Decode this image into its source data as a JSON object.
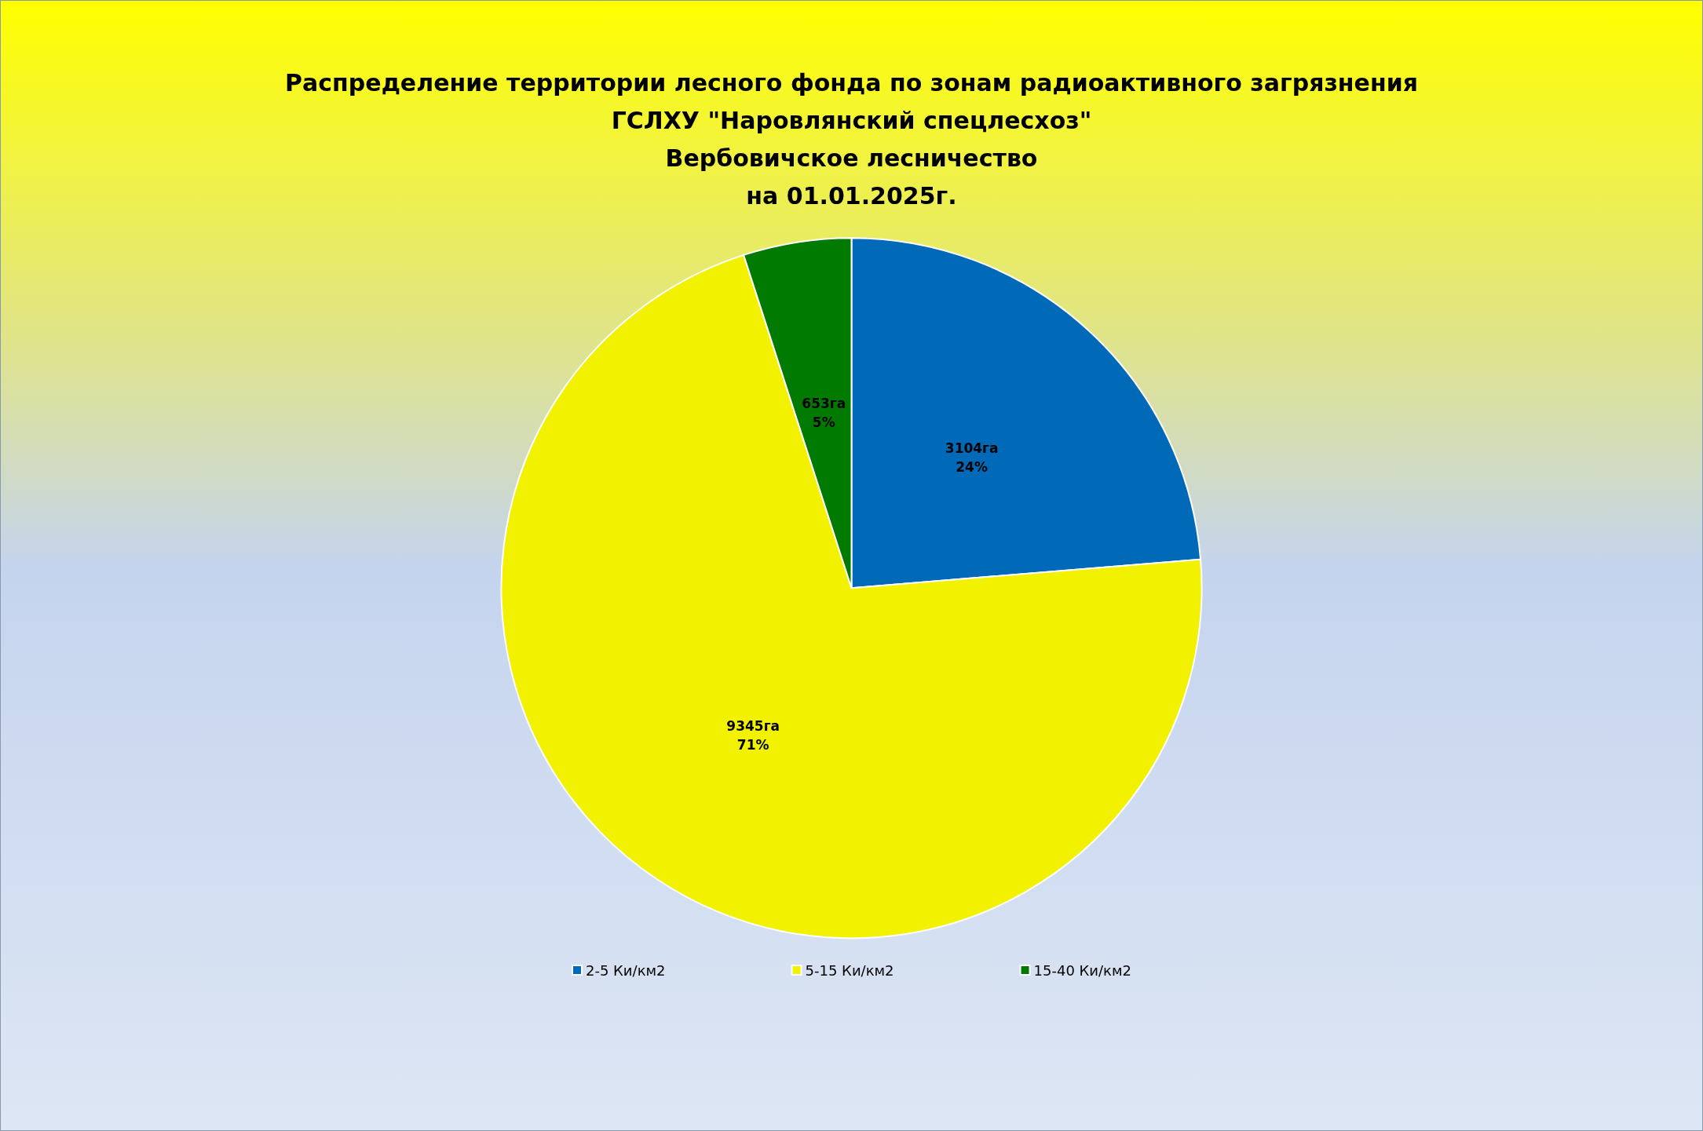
{
  "chart_data": {
    "type": "pie",
    "title": "Распределение территории лесного фонда по зонам радиоактивного загрязнения\nГСЛХУ \"Наровлянский спецлесхоз\"\nВербовичское лесничество\nна 01.01.2025г.",
    "categories": [
      "2-5 Ки/км2",
      "5-15 Ки/км2",
      "15-40 Ки/км2"
    ],
    "values": [
      3104,
      9345,
      653
    ],
    "value_labels": [
      "3104га\n24%",
      "9345га\n71%",
      "653га\n5%"
    ],
    "colors": [
      "#006ab8",
      "#f2f200",
      "#007a00"
    ],
    "legend": "bottom"
  }
}
